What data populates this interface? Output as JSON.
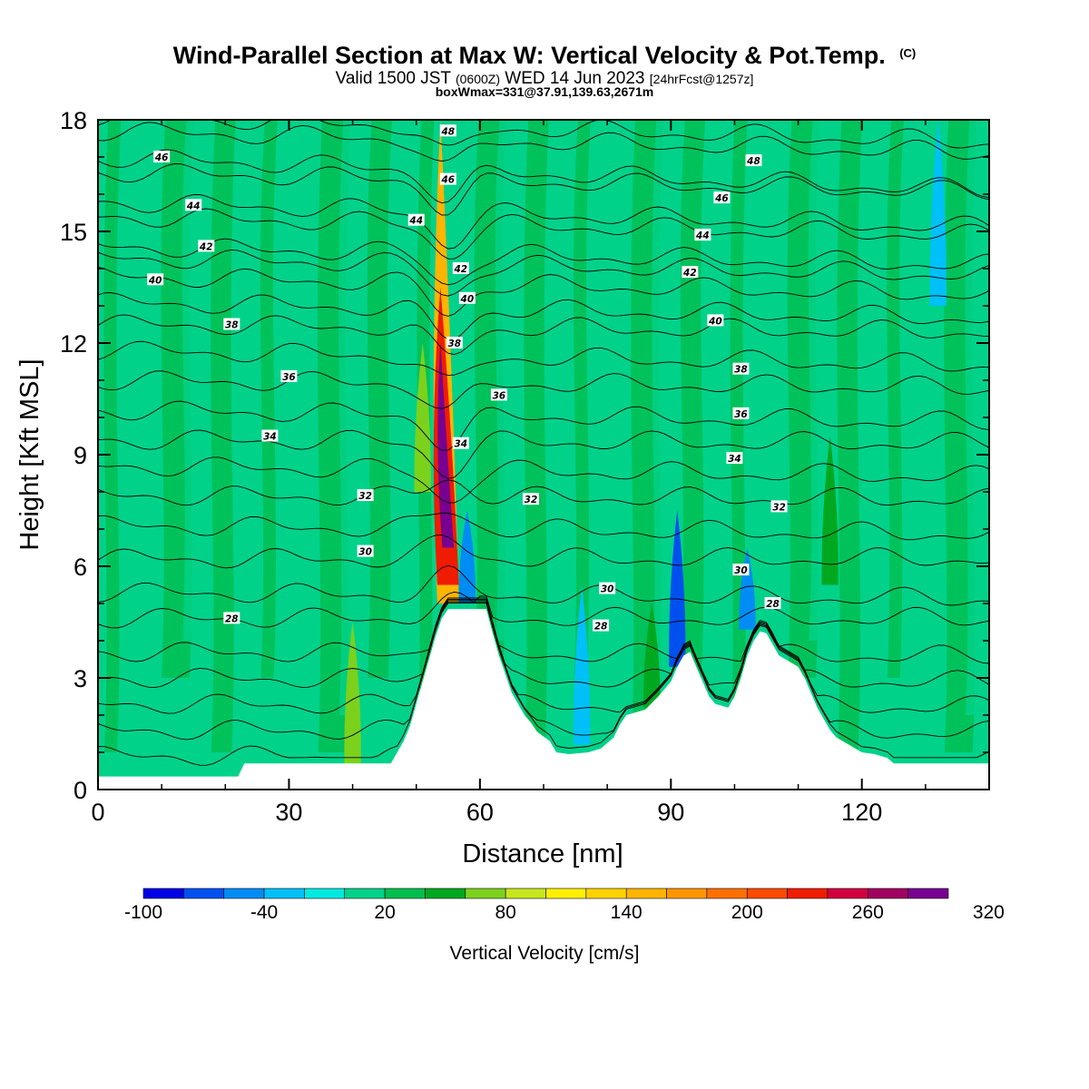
{
  "header": {
    "title_main": "Wind-Parallel Section at Max W: Vertical Velocity & Pot.Temp.",
    "title_mark": "(C)",
    "valid_a": "Valid 1500 JST",
    "valid_b": "(0600Z)",
    "valid_c": "WED 14 Jun 2023",
    "valid_d": "[24hrFcst@1257z]",
    "boxw": "boxWmax=331@37.91,139.63,2671m"
  },
  "chart_data": {
    "type": "heatmap",
    "title": "Wind-Parallel Section at Max W: Vertical Velocity & Pot.Temp. (C)",
    "xlabel": "Distance [nm]",
    "ylabel": "Height [Kft MSL]",
    "xlim": [
      0,
      140
    ],
    "ylim": [
      0,
      18
    ],
    "x_ticks": [
      "0",
      "30",
      "60",
      "90",
      "120"
    ],
    "y_ticks": [
      "0",
      "3",
      "6",
      "9",
      "12",
      "15",
      "18"
    ],
    "colorbar": {
      "label": "Vertical Velocity [cm/s]",
      "min": -100,
      "step": 20,
      "colors": [
        "#0000e6",
        "#0050f0",
        "#008cf5",
        "#00c0f8",
        "#00eadf",
        "#00d28a",
        "#00be4e",
        "#00a820",
        "#7cd11c",
        "#c8e61e",
        "#fff000",
        "#ffd200",
        "#ffb400",
        "#ff9600",
        "#ff7000",
        "#ff4a00",
        "#f01c00",
        "#d00040",
        "#a00060",
        "#780090"
      ],
      "tick_labels": [
        "-100",
        "-40",
        "20",
        "80",
        "140",
        "200",
        "260",
        "320"
      ]
    },
    "max_w": {
      "value": 331,
      "lat": 37.91,
      "lon": 139.63,
      "height_m": 2671
    },
    "terrain": [
      [
        0,
        0.35
      ],
      [
        22,
        0.35
      ],
      [
        23,
        0.7
      ],
      [
        46,
        0.7
      ],
      [
        47,
        1.0
      ],
      [
        48,
        1.3
      ],
      [
        49,
        1.7
      ],
      [
        50,
        2.3
      ],
      [
        51,
        2.9
      ],
      [
        52,
        3.5
      ],
      [
        53,
        4.1
      ],
      [
        54,
        4.6
      ],
      [
        55,
        4.85
      ],
      [
        61,
        4.85
      ],
      [
        62,
        4.2
      ],
      [
        63,
        3.6
      ],
      [
        64,
        3.1
      ],
      [
        65,
        2.6
      ],
      [
        66,
        2.3
      ],
      [
        67,
        2.0
      ],
      [
        68,
        1.8
      ],
      [
        69,
        1.55
      ],
      [
        71,
        1.3
      ],
      [
        72,
        1.0
      ],
      [
        74,
        0.95
      ],
      [
        77,
        1.0
      ],
      [
        79,
        1.1
      ],
      [
        81,
        1.4
      ],
      [
        82,
        1.75
      ],
      [
        83,
        2.0
      ],
      [
        86,
        2.15
      ],
      [
        88,
        2.5
      ],
      [
        90,
        2.9
      ],
      [
        91,
        3.3
      ],
      [
        92,
        3.6
      ],
      [
        93,
        3.7
      ],
      [
        94,
        3.3
      ],
      [
        95,
        2.9
      ],
      [
        96,
        2.5
      ],
      [
        97,
        2.3
      ],
      [
        99,
        2.2
      ],
      [
        100,
        2.5
      ],
      [
        101,
        3.0
      ],
      [
        102,
        3.6
      ],
      [
        103,
        4.0
      ],
      [
        104,
        4.25
      ],
      [
        105,
        4.2
      ],
      [
        106,
        3.9
      ],
      [
        107,
        3.6
      ],
      [
        108,
        3.5
      ],
      [
        110,
        3.3
      ],
      [
        111,
        3.0
      ],
      [
        112,
        2.6
      ],
      [
        113,
        2.2
      ],
      [
        114,
        1.9
      ],
      [
        115,
        1.6
      ],
      [
        116,
        1.4
      ],
      [
        118,
        1.2
      ],
      [
        120,
        1.0
      ],
      [
        122,
        0.95
      ],
      [
        124,
        0.85
      ],
      [
        125,
        0.7
      ],
      [
        140,
        0.7
      ]
    ],
    "theta_lines": [
      {
        "label": "28",
        "z": [
          4.6,
          4.6
        ]
      },
      {
        "label": "30",
        "z": [
          6.2,
          6.2
        ]
      },
      {
        "label": "32",
        "z": [
          7.9,
          7.8
        ]
      },
      {
        "label": "34",
        "z": [
          9.4,
          9.3
        ]
      },
      {
        "label": "36",
        "z": [
          11.0,
          10.8
        ]
      },
      {
        "label": "38",
        "z": [
          12.5,
          12.3
        ]
      },
      {
        "label": "40",
        "z": [
          13.8,
          13.3
        ]
      },
      {
        "label": "42",
        "z": [
          14.6,
          14.1
        ]
      },
      {
        "label": "44",
        "z": [
          15.8,
          15.1
        ]
      },
      {
        "label": "46",
        "z": [
          17.0,
          16.1
        ]
      },
      {
        "label": "48",
        "z": [
          18.1,
          17.4
        ]
      }
    ],
    "contour_labels": [
      {
        "t": "46",
        "x": 10,
        "z": 17.0
      },
      {
        "t": "44",
        "x": 15,
        "z": 15.7
      },
      {
        "t": "42",
        "x": 17,
        "z": 14.6
      },
      {
        "t": "40",
        "x": 9,
        "z": 13.7
      },
      {
        "t": "38",
        "x": 21,
        "z": 12.5
      },
      {
        "t": "36",
        "x": 30,
        "z": 11.1
      },
      {
        "t": "34",
        "x": 27,
        "z": 9.5
      },
      {
        "t": "32",
        "x": 42,
        "z": 7.9
      },
      {
        "t": "30",
        "x": 42,
        "z": 6.4
      },
      {
        "t": "28",
        "x": 21,
        "z": 4.6
      },
      {
        "t": "48",
        "x": 55,
        "z": 17.7
      },
      {
        "t": "46",
        "x": 55,
        "z": 16.4
      },
      {
        "t": "44",
        "x": 50,
        "z": 15.3
      },
      {
        "t": "42",
        "x": 57,
        "z": 14.0
      },
      {
        "t": "40",
        "x": 58,
        "z": 13.2
      },
      {
        "t": "38",
        "x": 56,
        "z": 12.0
      },
      {
        "t": "36",
        "x": 63,
        "z": 10.6
      },
      {
        "t": "34",
        "x": 57,
        "z": 9.3
      },
      {
        "t": "32",
        "x": 68,
        "z": 7.8
      },
      {
        "t": "30",
        "x": 80,
        "z": 5.4
      },
      {
        "t": "28",
        "x": 79,
        "z": 4.4
      },
      {
        "t": "48",
        "x": 103,
        "z": 16.9
      },
      {
        "t": "46",
        "x": 98,
        "z": 15.9
      },
      {
        "t": "44",
        "x": 95,
        "z": 14.9
      },
      {
        "t": "42",
        "x": 93,
        "z": 13.9
      },
      {
        "t": "40",
        "x": 97,
        "z": 12.6
      },
      {
        "t": "38",
        "x": 101,
        "z": 11.3
      },
      {
        "t": "36",
        "x": 101,
        "z": 10.1
      },
      {
        "t": "34",
        "x": 100,
        "z": 8.9
      },
      {
        "t": "32",
        "x": 107,
        "z": 7.6
      },
      {
        "t": "30",
        "x": 101,
        "z": 5.9
      },
      {
        "t": "28",
        "x": 106,
        "z": 5.0
      }
    ],
    "w_features": [
      {
        "x": 55,
        "z0": 5.0,
        "z1": 18.0,
        "w": 150,
        "name": "plume"
      },
      {
        "x": 55,
        "z0": 5.5,
        "z1": 13.5,
        "w": 220,
        "name": "plume"
      },
      {
        "x": 55,
        "z0": 6.5,
        "z1": 12.0,
        "w": 300,
        "name": "core"
      },
      {
        "x": 51,
        "z0": 8,
        "z1": 12,
        "w": 60,
        "name": "flank"
      },
      {
        "x": 58,
        "z0": 5.0,
        "z1": 7.5,
        "w": -60,
        "name": "downdraft"
      },
      {
        "x": 91,
        "z0": 3.3,
        "z1": 7.5,
        "w": -70,
        "name": "downdraft"
      },
      {
        "x": 102,
        "z0": 4.3,
        "z1": 6.5,
        "w": -50,
        "name": "downdraft"
      },
      {
        "x": 40,
        "z0": 0.7,
        "z1": 4.5,
        "w": 60,
        "name": "updraft"
      },
      {
        "x": 115,
        "z0": 5.5,
        "z1": 9.5,
        "w": 55,
        "name": "updraft"
      },
      {
        "x": 87,
        "z0": 2.2,
        "z1": 5,
        "w": 50,
        "name": "updraft"
      },
      {
        "x": 76,
        "z0": 1.2,
        "z1": 5.5,
        "w": -35,
        "name": "sink"
      },
      {
        "x": 132,
        "z0": 13,
        "z1": 18,
        "w": -35,
        "name": "sink"
      }
    ]
  }
}
